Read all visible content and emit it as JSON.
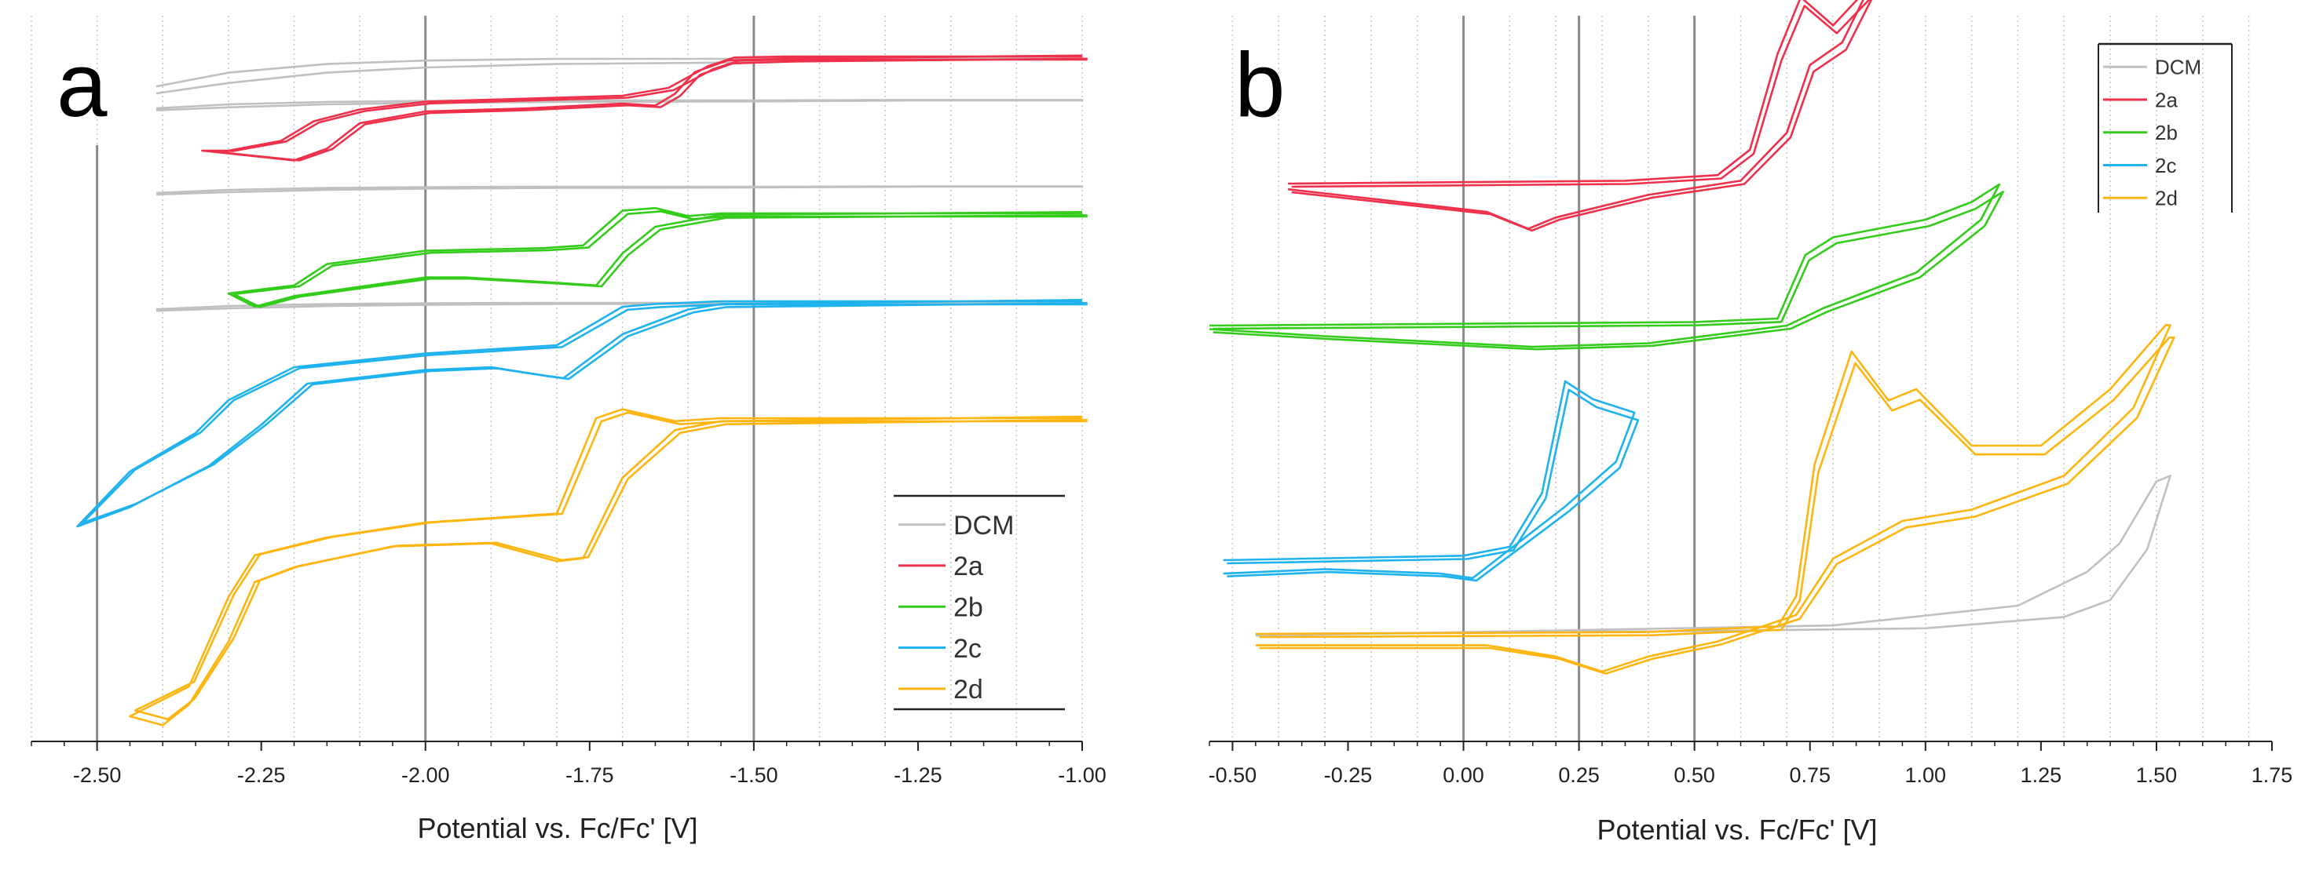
{
  "chart_data": [
    {
      "panel": "a",
      "type": "line",
      "xlabel": "Potential vs. Fc/Fc' [V]",
      "ylabel": "",
      "xlim": [
        -2.6,
        -1.0
      ],
      "xticks": [
        -2.5,
        -2.25,
        -2.0,
        -1.75,
        -1.5,
        -1.25,
        -1.0
      ],
      "xtick_labels": [
        "-2.50",
        "-2.25",
        "-2.00",
        "-1.75",
        "-1.50",
        "-1.25",
        "-1.00"
      ],
      "grid": "vertical",
      "legend": {
        "placement": "bottom-right",
        "entries": [
          "DCM",
          "2a",
          "2b",
          "2c",
          "2d"
        ]
      },
      "series": [
        {
          "name": "DCM",
          "color": "#c0c0c0",
          "offset": 0.0,
          "points": [
            [
              -2.41,
              -0.08
            ],
            [
              -2.3,
              -0.04
            ],
            [
              -2.15,
              -0.015
            ],
            [
              -2.0,
              -0.005
            ],
            [
              -1.8,
              0
            ],
            [
              -1.5,
              0
            ],
            [
              -1.25,
              0.005
            ],
            [
              -1.0,
              0.005
            ],
            [
              -1.0,
              0
            ],
            [
              -1.25,
              0
            ],
            [
              -1.5,
              -0.01
            ],
            [
              -1.8,
              -0.015
            ],
            [
              -2.0,
              -0.025
            ],
            [
              -2.15,
              -0.04
            ],
            [
              -2.3,
              -0.07
            ],
            [
              -2.41,
              -0.1
            ]
          ]
        },
        {
          "name": "2a",
          "color": "#f0304a",
          "offset": 0.0,
          "points": [
            [
              -1.0,
              0
            ],
            [
              -1.45,
              0
            ],
            [
              -1.53,
              -0.005
            ],
            [
              -1.57,
              -0.05
            ],
            [
              -1.63,
              -0.16
            ],
            [
              -1.7,
              -0.2
            ],
            [
              -1.85,
              -0.215
            ],
            [
              -2.0,
              -0.23
            ],
            [
              -2.1,
              -0.27
            ],
            [
              -2.17,
              -0.33
            ],
            [
              -2.22,
              -0.43
            ],
            [
              -2.3,
              -0.48
            ],
            [
              -2.34,
              -0.48
            ],
            [
              -2.2,
              -0.53
            ],
            [
              -2.15,
              -0.47
            ],
            [
              -2.1,
              -0.34
            ],
            [
              -2.0,
              -0.28
            ],
            [
              -1.85,
              -0.265
            ],
            [
              -1.7,
              -0.24
            ],
            [
              -1.65,
              -0.25
            ],
            [
              -1.62,
              -0.19
            ],
            [
              -1.59,
              -0.08
            ],
            [
              -1.54,
              -0.02
            ],
            [
              -1.45,
              -0.01
            ],
            [
              -1.0,
              0.005
            ]
          ]
        },
        {
          "name": "2b",
          "color": "#33cc1a",
          "offset": 0.0,
          "points": [
            [
              -1.0,
              0
            ],
            [
              -1.55,
              0
            ],
            [
              -1.6,
              -0.01
            ],
            [
              -1.65,
              0.02
            ],
            [
              -1.7,
              0.01
            ],
            [
              -1.76,
              -0.12
            ],
            [
              -1.82,
              -0.13
            ],
            [
              -2.0,
              -0.14
            ],
            [
              -2.15,
              -0.19
            ],
            [
              -2.2,
              -0.27
            ],
            [
              -2.3,
              -0.3
            ],
            [
              -2.26,
              -0.35
            ],
            [
              -2.2,
              -0.31
            ],
            [
              -2.0,
              -0.24
            ],
            [
              -1.94,
              -0.24
            ],
            [
              -1.8,
              -0.26
            ],
            [
              -1.74,
              -0.27
            ],
            [
              -1.7,
              -0.15
            ],
            [
              -1.65,
              -0.05
            ],
            [
              -1.55,
              -0.005
            ],
            [
              -1.0,
              0.005
            ]
          ]
        },
        {
          "name": "2c",
          "color": "#1eb2ee",
          "offset": 0.0,
          "points": [
            [
              -1.0,
              0
            ],
            [
              -1.55,
              0
            ],
            [
              -1.65,
              -0.01
            ],
            [
              -1.7,
              -0.02
            ],
            [
              -1.8,
              -0.16
            ],
            [
              -2.0,
              -0.19
            ],
            [
              -2.2,
              -0.24
            ],
            [
              -2.3,
              -0.36
            ],
            [
              -2.35,
              -0.48
            ],
            [
              -2.45,
              -0.62
            ],
            [
              -2.53,
              -0.82
            ],
            [
              -2.45,
              -0.75
            ],
            [
              -2.33,
              -0.6
            ],
            [
              -2.25,
              -0.45
            ],
            [
              -2.18,
              -0.3
            ],
            [
              -2.0,
              -0.25
            ],
            [
              -1.9,
              -0.24
            ],
            [
              -1.82,
              -0.27
            ],
            [
              -1.79,
              -0.28
            ],
            [
              -1.7,
              -0.12
            ],
            [
              -1.6,
              -0.03
            ],
            [
              -1.55,
              -0.01
            ],
            [
              -1.0,
              0.005
            ]
          ]
        },
        {
          "name": "2d",
          "color": "#ffb50f",
          "offset": 0.0,
          "points": [
            [
              -1.0,
              0
            ],
            [
              -1.55,
              0
            ],
            [
              -1.62,
              -0.01
            ],
            [
              -1.7,
              0.03
            ],
            [
              -1.74,
              0
            ],
            [
              -1.8,
              -0.32
            ],
            [
              -2.0,
              -0.35
            ],
            [
              -2.15,
              -0.4
            ],
            [
              -2.26,
              -0.46
            ],
            [
              -2.3,
              -0.6
            ],
            [
              -2.36,
              -0.9
            ],
            [
              -2.45,
              -1.0
            ],
            [
              -2.4,
              -1.03
            ],
            [
              -2.36,
              -0.96
            ],
            [
              -2.3,
              -0.75
            ],
            [
              -2.26,
              -0.55
            ],
            [
              -2.2,
              -0.5
            ],
            [
              -2.05,
              -0.43
            ],
            [
              -1.9,
              -0.42
            ],
            [
              -1.8,
              -0.48
            ],
            [
              -1.76,
              -0.47
            ],
            [
              -1.7,
              -0.2
            ],
            [
              -1.62,
              -0.04
            ],
            [
              -1.55,
              -0.01
            ],
            [
              -1.0,
              0.005
            ]
          ]
        }
      ]
    },
    {
      "panel": "b",
      "type": "line",
      "xlabel": "Potential vs. Fc/Fc' [V]",
      "ylabel": "",
      "xlim": [
        -0.55,
        1.75
      ],
      "xticks": [
        -0.5,
        -0.25,
        0.0,
        0.25,
        0.5,
        0.75,
        1.0,
        1.25,
        1.5,
        1.75
      ],
      "xtick_labels": [
        "-0.50",
        "-0.25",
        "0.00",
        "0.25",
        "0.50",
        "0.75",
        "1.00",
        "1.25",
        "1.50",
        "1.75"
      ],
      "grid": "vertical",
      "legend": {
        "placement": "top-right",
        "entries": [
          "DCM",
          "2a",
          "2b",
          "2c",
          "2d"
        ]
      },
      "series": [
        {
          "name": "DCM",
          "color": "#c0c0c0",
          "offset": 0.0,
          "points": [
            [
              -0.45,
              0
            ],
            [
              0.5,
              0.005
            ],
            [
              1.0,
              0.01
            ],
            [
              1.3,
              0.03
            ],
            [
              1.4,
              0.06
            ],
            [
              1.48,
              0.15
            ],
            [
              1.53,
              0.28
            ],
            [
              1.5,
              0.27
            ],
            [
              1.42,
              0.16
            ],
            [
              1.35,
              0.11
            ],
            [
              1.2,
              0.05
            ],
            [
              0.8,
              0.015
            ],
            [
              0.0,
              0.003
            ],
            [
              -0.45,
              -0.003
            ]
          ]
        },
        {
          "name": "2a",
          "color": "#f0304a",
          "offset": 0.0,
          "points": [
            [
              -0.38,
              0
            ],
            [
              0.35,
              0.005
            ],
            [
              0.55,
              0.015
            ],
            [
              0.62,
              0.06
            ],
            [
              0.68,
              0.23
            ],
            [
              0.73,
              0.33
            ],
            [
              0.8,
              0.28
            ],
            [
              0.88,
              0.35
            ],
            [
              0.82,
              0.25
            ],
            [
              0.75,
              0.21
            ],
            [
              0.7,
              0.09
            ],
            [
              0.6,
              0.005
            ],
            [
              0.4,
              -0.02
            ],
            [
              0.2,
              -0.06
            ],
            [
              0.14,
              -0.08
            ],
            [
              0.05,
              -0.05
            ],
            [
              -0.38,
              -0.01
            ]
          ]
        },
        {
          "name": "2b",
          "color": "#33cc1a",
          "offset": 0.0,
          "points": [
            [
              -0.55,
              0
            ],
            [
              0.5,
              0.01
            ],
            [
              0.68,
              0.02
            ],
            [
              0.74,
              0.2
            ],
            [
              0.8,
              0.25
            ],
            [
              1.0,
              0.3
            ],
            [
              1.1,
              0.35
            ],
            [
              1.16,
              0.4
            ],
            [
              1.12,
              0.3
            ],
            [
              0.98,
              0.15
            ],
            [
              0.78,
              0.05
            ],
            [
              0.7,
              0.0
            ],
            [
              0.4,
              -0.05
            ],
            [
              0.15,
              -0.06
            ],
            [
              -0.3,
              -0.03
            ],
            [
              -0.55,
              -0.01
            ]
          ]
        },
        {
          "name": "2c",
          "color": "#1eb2ee",
          "offset": 0.0,
          "points": [
            [
              -0.52,
              0
            ],
            [
              0.0,
              0.01
            ],
            [
              0.1,
              0.03
            ],
            [
              0.17,
              0.15
            ],
            [
              0.22,
              0.4
            ],
            [
              0.28,
              0.36
            ],
            [
              0.37,
              0.33
            ],
            [
              0.33,
              0.22
            ],
            [
              0.22,
              0.12
            ],
            [
              0.12,
              0.04
            ],
            [
              0.02,
              -0.04
            ],
            [
              -0.05,
              -0.03
            ],
            [
              -0.3,
              -0.02
            ],
            [
              -0.52,
              -0.03
            ]
          ]
        },
        {
          "name": "2d",
          "color": "#ffb50f",
          "offset": 0.0,
          "points": [
            [
              -0.45,
              0
            ],
            [
              0.4,
              0.005
            ],
            [
              0.68,
              0.02
            ],
            [
              0.72,
              0.1
            ],
            [
              0.76,
              0.45
            ],
            [
              0.84,
              0.75
            ],
            [
              0.92,
              0.62
            ],
            [
              0.98,
              0.65
            ],
            [
              1.1,
              0.5
            ],
            [
              1.25,
              0.5
            ],
            [
              1.4,
              0.65
            ],
            [
              1.52,
              0.82
            ],
            [
              1.53,
              0.82
            ],
            [
              1.45,
              0.6
            ],
            [
              1.3,
              0.42
            ],
            [
              1.1,
              0.33
            ],
            [
              0.95,
              0.3
            ],
            [
              0.8,
              0.2
            ],
            [
              0.72,
              0.05
            ],
            [
              0.55,
              -0.02
            ],
            [
              0.4,
              -0.06
            ],
            [
              0.3,
              -0.1
            ],
            [
              0.2,
              -0.06
            ],
            [
              0.05,
              -0.03
            ],
            [
              -0.45,
              -0.03
            ]
          ]
        }
      ]
    }
  ],
  "panel_a": {
    "letter": "a",
    "xlabel": "Potential vs. Fc/Fc' [V]"
  },
  "panel_b": {
    "letter": "b",
    "xlabel": "Potential vs. Fc/Fc' [V]"
  },
  "legend_entries": [
    "DCM",
    "2a",
    "2b",
    "2c",
    "2d"
  ],
  "colors": {
    "DCM": "#c0c0c0",
    "2a": "#f0304a",
    "2b": "#33cc1a",
    "2c": "#1eb2ee",
    "2d": "#ffb50f"
  }
}
